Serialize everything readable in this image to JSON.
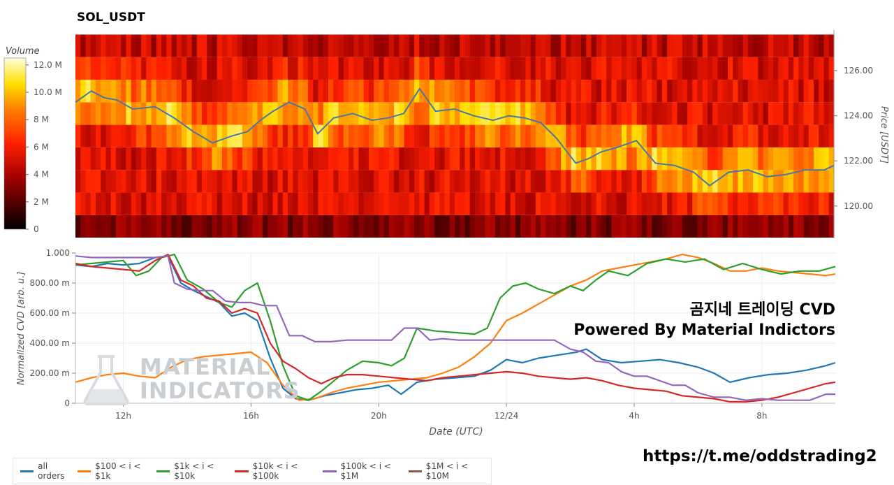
{
  "title": "SOL_USDT",
  "overlay_line1": "곰지네 트레이딩 CVD",
  "overlay_line2": "Powered By Material Indictors",
  "url": "https://t.me/oddstrading2",
  "watermark": [
    "MATERIAL",
    "INDICATORS"
  ],
  "colors": {
    "all_orders": "#1f77b4",
    "b100_1k": "#ff7f0e",
    "b1k_10k": "#2ca02c",
    "b10k_100k": "#d62728",
    "b100k_1M": "#9467bd",
    "b1M_10M": "#8c564b",
    "price_line": "#4a76a8"
  },
  "chart_data": [
    {
      "type": "heatmap",
      "title": "SOL_USDT",
      "colorbar": {
        "label": "Volume",
        "ticks": [
          "12.0 M",
          "10.0 M",
          "8 M",
          "6 M",
          "4 M",
          "2 M",
          "0"
        ],
        "range": [
          0,
          12.5
        ]
      },
      "y_axis": {
        "label": "Price [USDT]",
        "ticks": [
          "126.00",
          "124.00",
          "122.00",
          "120.00"
        ],
        "range": [
          118.6,
          127.8
        ]
      },
      "x_range_hours": [
        10.5,
        34.3
      ],
      "price_bands": [
        118.6,
        119.6,
        120.6,
        121.6,
        122.6,
        123.6,
        124.6,
        125.6,
        126.6,
        127.6
      ],
      "price_series": {
        "x_hours": [
          10.5,
          11.0,
          11.4,
          11.8,
          12.3,
          13.0,
          13.6,
          14.2,
          14.8,
          15.4,
          15.9,
          16.3,
          16.7,
          17.2,
          17.7,
          18.1,
          18.6,
          19.2,
          19.8,
          20.3,
          20.8,
          21.3,
          21.8,
          22.4,
          23.0,
          23.6,
          24.1,
          24.6,
          25.1,
          25.6,
          26.2,
          26.6,
          27.0,
          27.5,
          28.1,
          28.7,
          29.3,
          29.9,
          30.4,
          31.0,
          31.6,
          32.2,
          32.8,
          33.4,
          34.0,
          34.3
        ],
        "y_price": [
          124.6,
          125.1,
          124.8,
          124.7,
          124.3,
          124.4,
          123.9,
          123.3,
          122.8,
          123.1,
          123.3,
          123.8,
          124.2,
          124.6,
          124.3,
          123.2,
          123.9,
          124.1,
          123.8,
          123.9,
          124.1,
          125.2,
          124.2,
          124.3,
          124.0,
          123.8,
          124.0,
          123.9,
          123.7,
          123.0,
          121.9,
          122.1,
          122.4,
          122.6,
          122.9,
          121.9,
          121.8,
          121.5,
          120.9,
          121.5,
          121.6,
          121.3,
          121.4,
          121.6,
          121.6,
          121.8
        ]
      }
    },
    {
      "type": "line",
      "xlabel": "Date (UTC)",
      "ylabel": "Normalized CVD [arb. u.]",
      "ylim": [
        0,
        1
      ],
      "y_ticks": [
        "0",
        "200.00 m",
        "400.00 m",
        "600.00 m",
        "800.00 m",
        "1.000"
      ],
      "x_ticks": [
        "12h",
        "16h",
        "20h",
        "12/24",
        "4h",
        "8h"
      ],
      "x_tick_hours": [
        12,
        16,
        20,
        24,
        28,
        32
      ],
      "x_range_hours": [
        10.5,
        34.3
      ],
      "series": [
        {
          "name": "all orders",
          "x": [
            10.5,
            11.0,
            11.5,
            12.0,
            12.5,
            13.0,
            13.4,
            13.8,
            14.2,
            14.6,
            15.0,
            15.4,
            15.8,
            16.2,
            16.6,
            17.0,
            17.4,
            17.8,
            18.3,
            18.8,
            19.3,
            19.8,
            20.3,
            20.7,
            21.2,
            21.8,
            22.4,
            23.0,
            23.5,
            24.0,
            24.5,
            25.0,
            25.6,
            26.2,
            26.5,
            27.0,
            27.6,
            28.2,
            28.8,
            29.4,
            30.0,
            30.5,
            31.0,
            31.6,
            32.2,
            32.8,
            33.4,
            34.0,
            34.3
          ],
          "y": [
            0.92,
            0.91,
            0.93,
            0.92,
            0.93,
            0.97,
            0.98,
            0.8,
            0.75,
            0.71,
            0.67,
            0.58,
            0.6,
            0.55,
            0.3,
            0.1,
            0.03,
            0.02,
            0.05,
            0.07,
            0.09,
            0.1,
            0.12,
            0.06,
            0.14,
            0.16,
            0.17,
            0.18,
            0.22,
            0.29,
            0.27,
            0.3,
            0.32,
            0.34,
            0.36,
            0.29,
            0.27,
            0.28,
            0.29,
            0.27,
            0.24,
            0.2,
            0.14,
            0.17,
            0.19,
            0.2,
            0.22,
            0.25,
            0.27
          ]
        },
        {
          "name": "$100 < i < $1k",
          "x": [
            10.5,
            11.0,
            11.5,
            12.0,
            12.5,
            13.0,
            13.5,
            14.0,
            14.5,
            15.0,
            15.5,
            16.0,
            16.5,
            17.0,
            17.5,
            18.0,
            18.5,
            19.0,
            19.5,
            20.0,
            20.5,
            21.0,
            21.5,
            22.0,
            22.5,
            23.0,
            23.5,
            24.0,
            24.5,
            25.0,
            25.5,
            26.0,
            26.5,
            27.0,
            27.5,
            28.0,
            28.5,
            29.0,
            29.5,
            30.0,
            30.5,
            31.0,
            31.5,
            32.0,
            32.5,
            33.0,
            33.5,
            34.0,
            34.3
          ],
          "y": [
            0.14,
            0.17,
            0.19,
            0.2,
            0.18,
            0.17,
            0.24,
            0.29,
            0.31,
            0.32,
            0.33,
            0.34,
            0.27,
            0.12,
            0.02,
            0.03,
            0.07,
            0.1,
            0.12,
            0.14,
            0.15,
            0.16,
            0.17,
            0.2,
            0.24,
            0.31,
            0.4,
            0.55,
            0.6,
            0.66,
            0.72,
            0.78,
            0.82,
            0.88,
            0.9,
            0.92,
            0.94,
            0.96,
            0.99,
            0.97,
            0.93,
            0.88,
            0.88,
            0.9,
            0.88,
            0.87,
            0.86,
            0.85,
            0.86
          ]
        },
        {
          "name": "$1k < i < $10k",
          "x": [
            10.5,
            11.0,
            11.5,
            12.0,
            12.4,
            12.8,
            13.2,
            13.6,
            14.0,
            14.5,
            15.0,
            15.4,
            15.8,
            16.2,
            16.6,
            17.0,
            17.4,
            17.8,
            18.2,
            18.6,
            19.0,
            19.5,
            20.0,
            20.4,
            20.8,
            21.2,
            21.8,
            22.4,
            23.0,
            23.4,
            23.8,
            24.2,
            24.6,
            25.0,
            25.5,
            26.0,
            26.4,
            26.8,
            27.2,
            27.8,
            28.4,
            29.0,
            29.6,
            30.2,
            30.8,
            31.4,
            32.0,
            32.6,
            33.2,
            33.8,
            34.3
          ],
          "y": [
            0.92,
            0.93,
            0.94,
            0.95,
            0.85,
            0.88,
            0.97,
            0.99,
            0.82,
            0.76,
            0.67,
            0.64,
            0.75,
            0.8,
            0.55,
            0.25,
            0.05,
            0.02,
            0.08,
            0.15,
            0.22,
            0.28,
            0.27,
            0.25,
            0.3,
            0.5,
            0.48,
            0.47,
            0.46,
            0.5,
            0.7,
            0.78,
            0.8,
            0.76,
            0.73,
            0.78,
            0.75,
            0.82,
            0.88,
            0.85,
            0.93,
            0.96,
            0.94,
            0.96,
            0.89,
            0.93,
            0.89,
            0.86,
            0.88,
            0.88,
            0.91
          ]
        },
        {
          "name": "$10k < i < $100k",
          "x": [
            10.5,
            11.0,
            11.5,
            12.0,
            12.5,
            13.0,
            13.4,
            13.8,
            14.2,
            14.6,
            15.0,
            15.4,
            15.8,
            16.2,
            16.6,
            17.0,
            17.4,
            17.8,
            18.2,
            18.6,
            19.0,
            19.5,
            20.0,
            20.5,
            21.0,
            21.5,
            22.0,
            22.5,
            23.0,
            23.5,
            24.0,
            24.5,
            25.0,
            25.5,
            26.0,
            26.5,
            27.0,
            27.5,
            28.0,
            28.5,
            29.0,
            29.5,
            30.0,
            30.5,
            31.0,
            31.5,
            32.0,
            32.5,
            33.0,
            33.5,
            34.0,
            34.3
          ],
          "y": [
            0.93,
            0.91,
            0.9,
            0.89,
            0.88,
            0.95,
            0.99,
            0.82,
            0.78,
            0.7,
            0.68,
            0.6,
            0.63,
            0.6,
            0.4,
            0.28,
            0.23,
            0.17,
            0.13,
            0.17,
            0.19,
            0.19,
            0.18,
            0.17,
            0.16,
            0.15,
            0.17,
            0.18,
            0.19,
            0.2,
            0.21,
            0.2,
            0.18,
            0.17,
            0.16,
            0.17,
            0.15,
            0.12,
            0.1,
            0.09,
            0.08,
            0.05,
            0.04,
            0.03,
            0.01,
            0.01,
            0.02,
            0.04,
            0.07,
            0.1,
            0.13,
            0.14
          ]
        },
        {
          "name": "$100k < i < $1M",
          "x": [
            10.5,
            11.0,
            11.5,
            12.0,
            12.5,
            13.0,
            13.4,
            13.6,
            14.0,
            14.4,
            14.8,
            15.2,
            15.6,
            16.0,
            16.4,
            16.8,
            17.2,
            17.6,
            18.0,
            18.5,
            19.0,
            19.5,
            20.0,
            20.4,
            20.8,
            21.2,
            21.6,
            22.0,
            22.5,
            23.0,
            23.5,
            24.0,
            24.5,
            25.0,
            25.5,
            26.0,
            26.4,
            26.8,
            27.2,
            27.6,
            28.0,
            28.4,
            28.8,
            29.2,
            29.6,
            30.0,
            30.5,
            31.0,
            31.5,
            32.0,
            32.5,
            33.0,
            33.5,
            34.0,
            34.3
          ],
          "y": [
            0.98,
            0.97,
            0.97,
            0.97,
            0.97,
            0.97,
            0.98,
            0.8,
            0.76,
            0.75,
            0.75,
            0.68,
            0.67,
            0.67,
            0.65,
            0.65,
            0.45,
            0.45,
            0.41,
            0.41,
            0.42,
            0.42,
            0.42,
            0.42,
            0.5,
            0.5,
            0.42,
            0.43,
            0.42,
            0.42,
            0.42,
            0.42,
            0.42,
            0.42,
            0.42,
            0.36,
            0.34,
            0.28,
            0.27,
            0.21,
            0.18,
            0.18,
            0.15,
            0.12,
            0.12,
            0.07,
            0.04,
            0.04,
            0.02,
            0.03,
            0.02,
            0.02,
            0.02,
            0.06,
            0.06
          ]
        },
        {
          "name": "$1M < i < $10M",
          "x": [],
          "y": []
        }
      ]
    }
  ]
}
